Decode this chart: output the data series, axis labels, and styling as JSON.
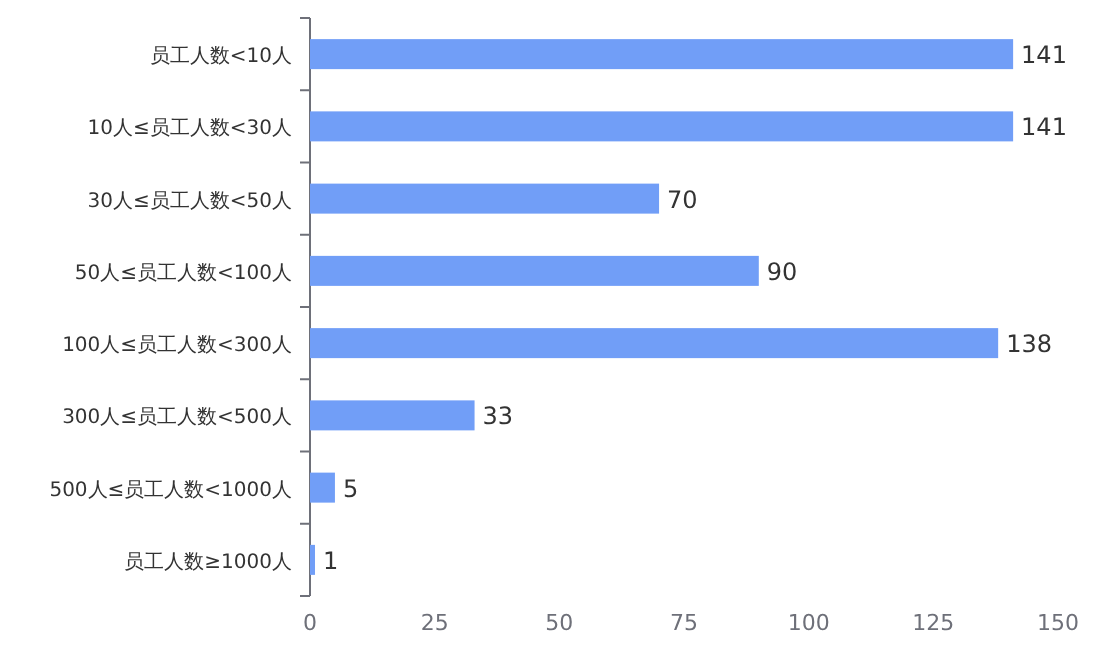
{
  "chart_data": {
    "type": "bar",
    "orientation": "horizontal",
    "categories": [
      "员工人数<10人",
      "10人≤员工人数<30人",
      "30人≤员工人数<50人",
      "50人≤员工人数<100人",
      "100人≤员工人数<300人",
      "300人≤员工人数<500人",
      "500人≤员工人数<1000人",
      "员工人数≥1000人"
    ],
    "values": [
      141,
      141,
      70,
      90,
      138,
      33,
      5,
      1
    ],
    "color": "#719ef7",
    "xlim": [
      0,
      150
    ],
    "xticks": [
      0,
      25,
      50,
      75,
      100,
      125,
      150
    ],
    "data_labels": true
  }
}
